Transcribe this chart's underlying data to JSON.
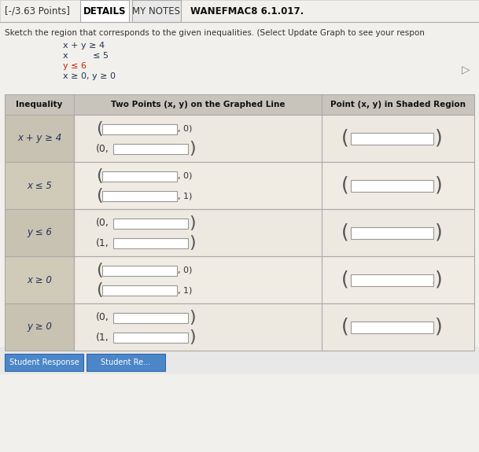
{
  "title_left": "[-/3.63 Points]",
  "tab1": "DETAILS",
  "tab2": "MY NOTES",
  "tab3": "WANEFMAC8 6.1.017.",
  "instruction": "Sketch the region that corresponds to the given inequalities. (Select Update Graph to see your respon",
  "ineq_lines": [
    "x + y ≥ 4",
    "x         ≤ 5",
    "y ≤ 6",
    "x ≥ 0, y ≥ 0"
  ],
  "col1_header": "Inequality",
  "col2_header": "Two Points (x, y) on the Graphed Line",
  "col3_header": "Point (x, y) in Shaded Region",
  "row_inequalities": [
    "x + y ≥ 4",
    "x ≤ 5",
    "y ≤ 6",
    "x ≥ 0",
    "y ≥ 0"
  ],
  "bg_color": "#f2f0ed",
  "page_bg": "#f2f0ed",
  "header_bg": "#c8c4bc",
  "row_bg_col1": "#c8c2b2",
  "row_bg_col23": "#ede8e0",
  "table_border": "#aaaaaa",
  "input_bg": "#ffffff",
  "input_border": "#999999",
  "tab_selected_bg": "#ffffff",
  "tab_unselected_bg": "#e8e8e8",
  "tab_border": "#aaaaaa",
  "button_bg": "#4a86c8",
  "topbar_bg": "#f2f0ed",
  "ineq_color_red": "#cc2200",
  "ineq_color_dark": "#223355"
}
